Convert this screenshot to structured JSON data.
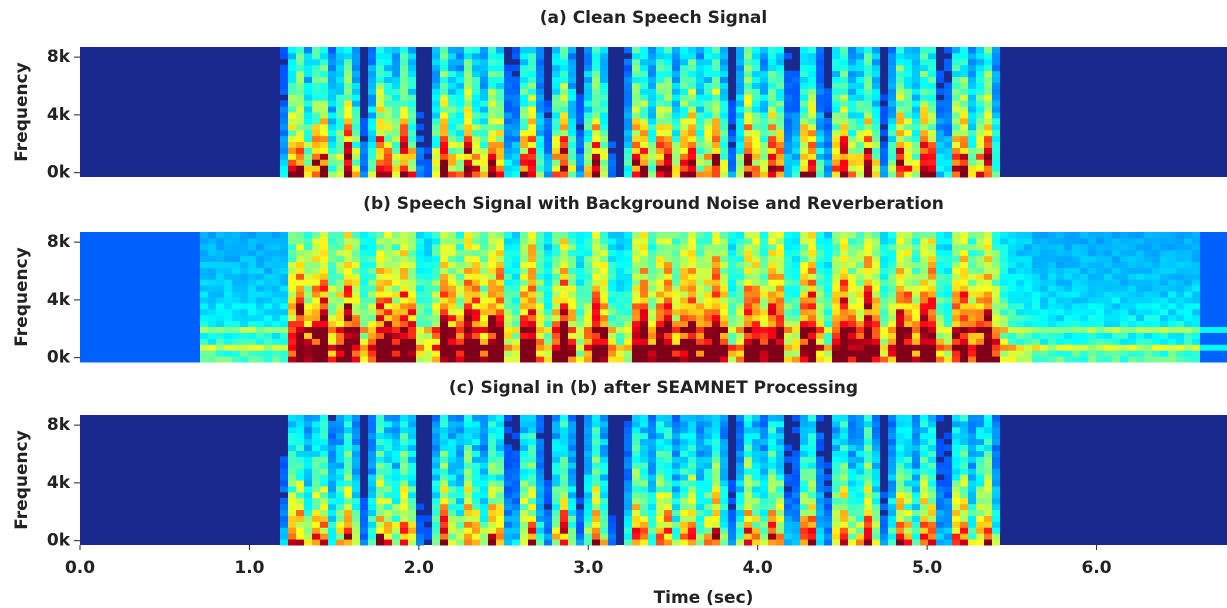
{
  "chart_data": [
    {
      "type": "spectrogram",
      "title": "(a) Clean Speech Signal",
      "ylabel": "Frequency",
      "xlim": [
        0,
        6.77
      ],
      "ylim": [
        -300,
        8700
      ],
      "yticks": [
        {
          "value": 0,
          "label": "0k"
        },
        {
          "value": 4000,
          "label": "4k"
        },
        {
          "value": 8000,
          "label": "8k"
        }
      ]
    },
    {
      "type": "spectrogram",
      "title": "(b) Speech Signal with Background Noise and Reverberation",
      "ylabel": "Frequency",
      "xlim": [
        0,
        6.77
      ],
      "ylim": [
        -300,
        8700
      ],
      "yticks": [
        {
          "value": 0,
          "label": "0k"
        },
        {
          "value": 4000,
          "label": "4k"
        },
        {
          "value": 8000,
          "label": "8k"
        }
      ]
    },
    {
      "type": "spectrogram",
      "title": "(c) Signal in (b) after SEAMNET Processing",
      "ylabel": "Frequency",
      "xlim": [
        0,
        6.77
      ],
      "ylim": [
        -300,
        8700
      ],
      "yticks": [
        {
          "value": 0,
          "label": "0k"
        },
        {
          "value": 4000,
          "label": "4k"
        },
        {
          "value": 8000,
          "label": "8k"
        }
      ],
      "xlabel": "Time (sec)",
      "xticks": [
        {
          "value": 0,
          "label": "0.0"
        },
        {
          "value": 1,
          "label": "1.0"
        },
        {
          "value": 2,
          "label": "2.0"
        },
        {
          "value": 3,
          "label": "3.0"
        },
        {
          "value": 4,
          "label": "4.0"
        },
        {
          "value": 5,
          "label": "5.0"
        },
        {
          "value": 6,
          "label": "6.0"
        }
      ]
    }
  ]
}
